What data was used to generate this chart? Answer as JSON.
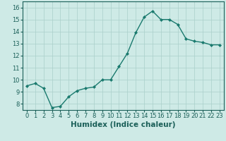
{
  "xlabel": "Humidex (Indice chaleur)",
  "ylabel": "",
  "x": [
    0,
    1,
    2,
    3,
    4,
    5,
    6,
    7,
    8,
    9,
    10,
    11,
    12,
    13,
    14,
    15,
    16,
    17,
    18,
    19,
    20,
    21,
    22,
    23
  ],
  "y": [
    9.5,
    9.7,
    9.3,
    7.7,
    7.8,
    8.6,
    9.1,
    9.3,
    9.4,
    10.0,
    10.0,
    11.1,
    12.2,
    13.9,
    15.2,
    15.7,
    15.0,
    15.0,
    14.6,
    13.4,
    13.2,
    13.1,
    12.9,
    12.9
  ],
  "line_color": "#1a7a6e",
  "marker": "D",
  "marker_size": 2.0,
  "line_width": 1.0,
  "background_color": "#ceeae6",
  "grid_color": "#aacfca",
  "ylim": [
    7.5,
    16.5
  ],
  "yticks": [
    8,
    9,
    10,
    11,
    12,
    13,
    14,
    15,
    16
  ],
  "xticks": [
    0,
    1,
    2,
    3,
    4,
    5,
    6,
    7,
    8,
    9,
    10,
    11,
    12,
    13,
    14,
    15,
    16,
    17,
    18,
    19,
    20,
    21,
    22,
    23
  ],
  "tick_fontsize": 6.0,
  "xlabel_fontsize": 7.5,
  "tick_color": "#1a5f58",
  "xlabel_color": "#1a5f58",
  "spine_color": "#1a5f58"
}
